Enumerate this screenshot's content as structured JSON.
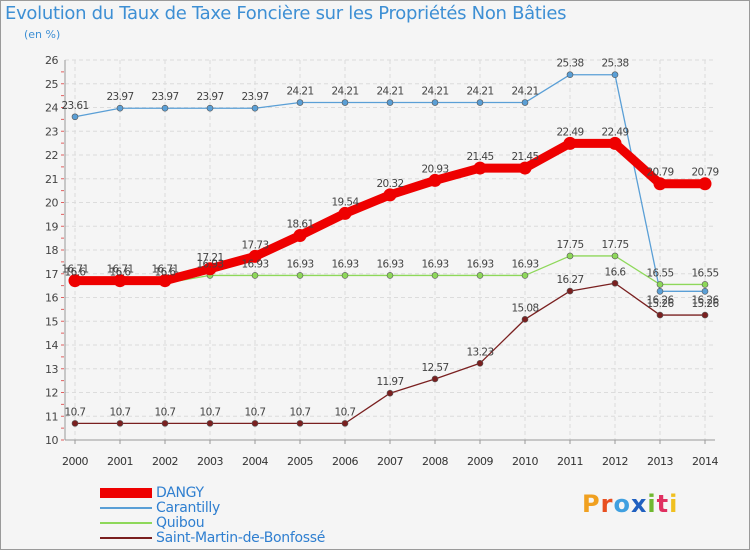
{
  "title": "Evolution du Taux de Taxe Foncière sur les Propriétés Non Bâties",
  "subtitle": "(en %)",
  "logo": {
    "text": "Proxiti",
    "colors": [
      "#f0a020",
      "#e84f20",
      "#40a0e0",
      "#2060c0",
      "#70b830",
      "#e03060",
      "#f0c020"
    ]
  },
  "chart_data": {
    "type": "line",
    "title": "Evolution du Taux de Taxe Foncière sur les Propriétés Non Bâties",
    "ylabel": "(en %)",
    "xlabel": "",
    "ylim": [
      10,
      26
    ],
    "yticks": [
      "10",
      "11",
      "12",
      "13",
      "14",
      "15",
      "16",
      "17",
      "18",
      "19",
      "20",
      "21",
      "22",
      "23",
      "24",
      "25",
      "26"
    ],
    "x": [
      "2000",
      "2001",
      "2002",
      "2003",
      "2004",
      "2005",
      "2006",
      "2007",
      "2008",
      "2009",
      "2010",
      "2011",
      "2012",
      "2013",
      "2014"
    ],
    "series": [
      {
        "name": "DANGY",
        "color": "#ee0000",
        "values": [
          16.71,
          16.71,
          16.71,
          17.21,
          17.73,
          18.61,
          19.54,
          20.32,
          20.93,
          21.45,
          21.45,
          22.49,
          22.49,
          20.79,
          20.79
        ],
        "labels": [
          "16.71",
          "16.71",
          "16.71",
          "17.21",
          "17.73",
          "18.61",
          "19.54",
          "20.32",
          "20.93",
          "21.45",
          "21.45",
          "22.49",
          "22.49",
          "20.79",
          "20.79"
        ]
      },
      {
        "name": "Carantilly",
        "color": "#5a9fd6",
        "values": [
          23.61,
          23.97,
          23.97,
          23.97,
          23.97,
          24.21,
          24.21,
          24.21,
          24.21,
          24.21,
          24.21,
          25.38,
          25.38,
          16.26,
          16.26
        ],
        "labels": [
          "23.61",
          "23.97",
          "23.97",
          "23.97",
          "23.97",
          "24.21",
          "24.21",
          "24.21",
          "24.21",
          "24.21",
          "24.21",
          "25.38",
          "25.38",
          "16.26",
          "16.26"
        ]
      },
      {
        "name": "Quibou",
        "color": "#8ed85a",
        "values": [
          16.6,
          16.6,
          16.6,
          16.93,
          16.93,
          16.93,
          16.93,
          16.93,
          16.93,
          16.93,
          16.93,
          17.75,
          17.75,
          16.55,
          16.55
        ],
        "labels": [
          "16.6",
          "16.6",
          "16.6",
          "16.93",
          "16.93",
          "16.93",
          "16.93",
          "16.93",
          "16.93",
          "16.93",
          "16.93",
          "17.75",
          "17.75",
          "16.55",
          "16.55"
        ]
      },
      {
        "name": "Saint-Martin-de-Bonfossé",
        "color": "#7a2020",
        "values": [
          10.7,
          10.7,
          10.7,
          10.7,
          10.7,
          10.7,
          10.7,
          11.97,
          12.57,
          13.23,
          15.08,
          16.27,
          16.6,
          15.26,
          15.26
        ],
        "labels": [
          "10.7",
          "10.7",
          "10.7",
          "10.7",
          "10.7",
          "10.7",
          "10.7",
          "11.97",
          "12.57",
          "13.23",
          "15.08",
          "16.27",
          "16.6",
          "15.26",
          "15.26"
        ]
      }
    ]
  }
}
